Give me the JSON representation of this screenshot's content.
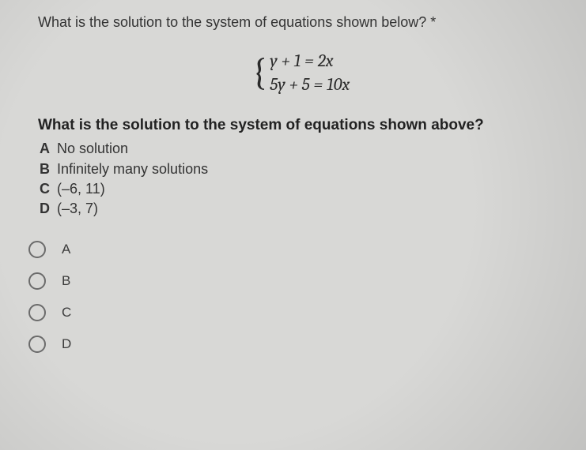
{
  "question_title": "What is the solution to the system of equations shown below?  *",
  "equations": {
    "line1": "y + 1 = 2x",
    "line2": "5y + 5 = 10x"
  },
  "sub_question": "What is the solution to the system of equations shown above?",
  "answers": [
    {
      "letter": "A",
      "text": "No solution"
    },
    {
      "letter": "B",
      "text": "Infinitely many solutions"
    },
    {
      "letter": "C",
      "text": "(–6, 11)"
    },
    {
      "letter": "D",
      "text": "(–3, 7)"
    }
  ],
  "options": [
    {
      "label": "A"
    },
    {
      "label": "B"
    },
    {
      "label": "C"
    },
    {
      "label": "D"
    }
  ],
  "colors": {
    "background": "#d8d8d6",
    "text": "#2a2a2a",
    "radio_border": "#6b6b6b"
  },
  "typography": {
    "title_fontsize": 18,
    "equation_fontsize": 22,
    "subquestion_fontsize": 19,
    "answer_fontsize": 18,
    "option_fontsize": 17
  }
}
